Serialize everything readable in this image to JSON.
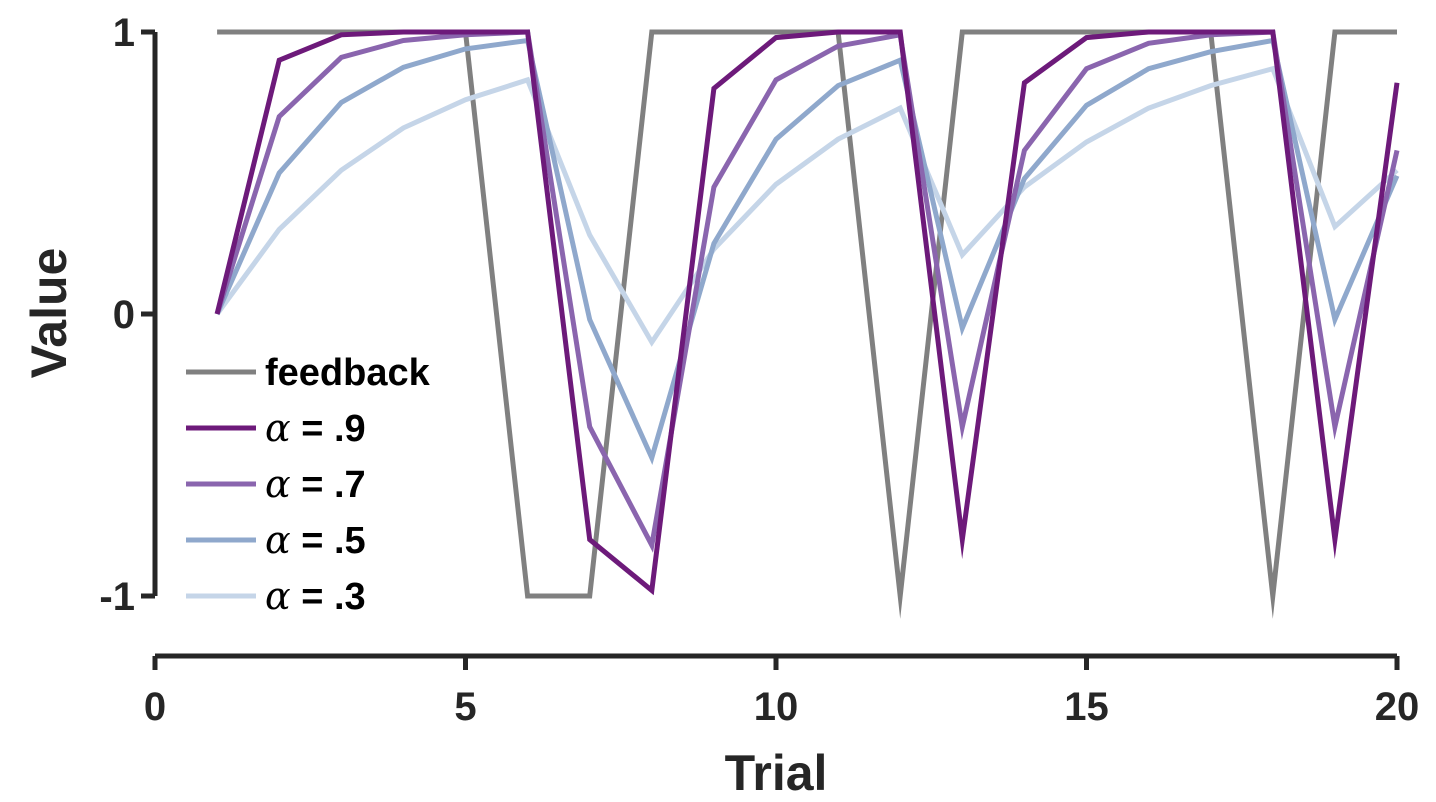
{
  "chart_data": {
    "type": "line",
    "xlabel": "Trial",
    "ylabel": "Value",
    "xlim": [
      0,
      20
    ],
    "ylim": [
      -1,
      1
    ],
    "xticks": [
      0,
      5,
      10,
      15,
      20
    ],
    "yticks": [
      -1,
      0,
      1
    ],
    "xtick_labels": [
      "0",
      "5",
      "10",
      "15",
      "20"
    ],
    "ytick_labels": [
      "-1",
      "0",
      "1"
    ],
    "grid": false,
    "legend_position": "bottom-left",
    "x": [
      1,
      2,
      3,
      4,
      5,
      6,
      7,
      8,
      9,
      10,
      11,
      12,
      13,
      14,
      15,
      16,
      17,
      18,
      19,
      20
    ],
    "series": [
      {
        "name": "feedback",
        "color": "#808080",
        "values": [
          1,
          1,
          1,
          1,
          1,
          -1,
          -1,
          1,
          1,
          1,
          1,
          -1,
          1,
          1,
          1,
          1,
          1,
          -1,
          1,
          1
        ]
      },
      {
        "name_prefix": "α",
        "name_suffix": " = .9",
        "color": "#6d1a7a",
        "values": [
          0,
          0.9,
          0.99,
          1.0,
          1.0,
          1.0,
          -0.8,
          -0.98,
          0.8,
          0.98,
          1.0,
          1.0,
          -0.8,
          0.82,
          0.98,
          1.0,
          1.0,
          1.0,
          -0.8,
          0.82
        ]
      },
      {
        "name_prefix": "α",
        "name_suffix": " = .7",
        "color": "#8a65ae",
        "values": [
          0,
          0.7,
          0.91,
          0.97,
          0.99,
          1.0,
          -0.4,
          -0.82,
          0.45,
          0.83,
          0.95,
          0.99,
          -0.4,
          0.58,
          0.87,
          0.96,
          0.99,
          1.0,
          -0.4,
          0.58
        ]
      },
      {
        "name_prefix": "α",
        "name_suffix": " = .5",
        "color": "#8fa8cc",
        "values": [
          0,
          0.5,
          0.75,
          0.875,
          0.94,
          0.97,
          -0.02,
          -0.51,
          0.25,
          0.62,
          0.81,
          0.9,
          -0.05,
          0.48,
          0.74,
          0.87,
          0.93,
          0.97,
          -0.02,
          0.49
        ]
      },
      {
        "name_prefix": "α",
        "name_suffix": " = .3",
        "color": "#c5d5e8",
        "values": [
          0,
          0.3,
          0.51,
          0.66,
          0.76,
          0.83,
          0.28,
          -0.1,
          0.23,
          0.46,
          0.62,
          0.73,
          0.21,
          0.45,
          0.61,
          0.73,
          0.81,
          0.87,
          0.31,
          0.51
        ]
      }
    ]
  }
}
